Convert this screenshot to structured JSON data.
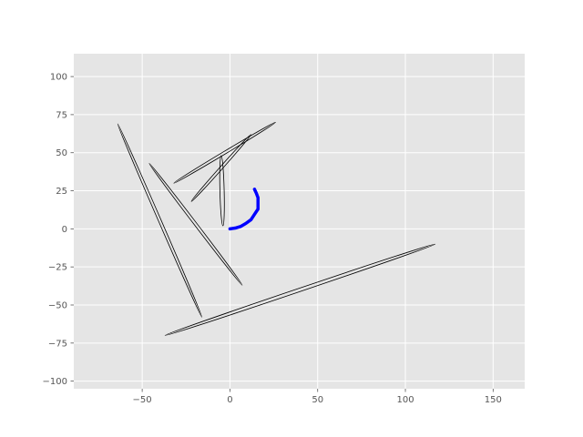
{
  "chart_data": {
    "type": "line",
    "style": "ggplot",
    "grid": true,
    "xlim": [
      -89,
      168
    ],
    "ylim": [
      -105,
      115
    ],
    "x_ticks": [
      -50,
      0,
      50,
      100,
      150
    ],
    "x_tick_labels": [
      "−50",
      "0",
      "50",
      "100",
      "150"
    ],
    "y_ticks": [
      100,
      75,
      50,
      25,
      0,
      -25,
      -50,
      -75,
      -100
    ],
    "y_tick_labels": [
      "100",
      "75",
      "50",
      "25",
      "0",
      "−25",
      "−50",
      "−75",
      "−100"
    ],
    "colors": {
      "panel": "#e5e5e5",
      "grid": "#ffffff",
      "ellipse": "#000000",
      "arc": "#0000ff"
    },
    "ellipses": [
      {
        "x1": -64,
        "y1": 69,
        "x2": -16,
        "y2": -58,
        "half_width": 0.9
      },
      {
        "x1": -46,
        "y1": 43,
        "x2": 7,
        "y2": -37,
        "half_width": 0.9
      },
      {
        "x1": -32,
        "y1": 30,
        "x2": 26,
        "y2": 70,
        "half_width": 0.9
      },
      {
        "x1": -22,
        "y1": 18,
        "x2": 12,
        "y2": 62,
        "half_width": 0.9
      },
      {
        "x1": -5,
        "y1": 48,
        "x2": -4,
        "y2": 2,
        "half_width": 1.4
      },
      {
        "x1": -37,
        "y1": -70,
        "x2": 117,
        "y2": -10,
        "half_width": 1.1
      }
    ],
    "arc": {
      "x": [
        0,
        3,
        6,
        9,
        12,
        14,
        16,
        16,
        16,
        15,
        14
      ],
      "y": [
        0,
        0.5,
        1.5,
        3.5,
        6,
        9.5,
        13,
        17,
        20.5,
        23.5,
        26
      ]
    }
  }
}
